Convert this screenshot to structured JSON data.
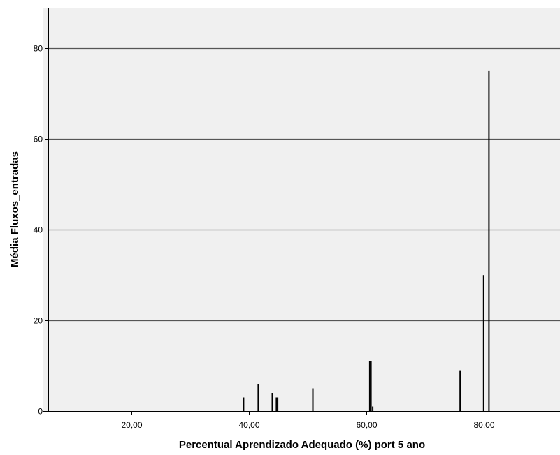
{
  "chart_data": {
    "type": "bar",
    "title": "",
    "xlabel": "Percentual Aprendizado Adequado (%) port 5 ano",
    "ylabel": "Média Fluxos_entradas",
    "xlim": [
      5,
      93
    ],
    "ylim": [
      0,
      89
    ],
    "xticks": [
      {
        "value": 20,
        "label": "20,00"
      },
      {
        "value": 40,
        "label": "40,00"
      },
      {
        "value": 60,
        "label": "60,00"
      },
      {
        "value": 80,
        "label": "80,00"
      }
    ],
    "yticks": [
      {
        "value": 0,
        "label": "0"
      },
      {
        "value": 20,
        "label": "20"
      },
      {
        "value": 40,
        "label": "40"
      },
      {
        "value": 60,
        "label": "60"
      },
      {
        "value": 80,
        "label": "80"
      }
    ],
    "grid": "horizontal",
    "x": [
      39.1,
      41.6,
      44.0,
      44.7,
      44.9,
      50.9,
      60.6,
      60.8,
      61.1,
      76.0,
      80.0,
      80.9
    ],
    "values": [
      3,
      6,
      4,
      3,
      3,
      5,
      11,
      11,
      1,
      9,
      30,
      75
    ],
    "colors": {
      "plot_bg": "#f0f0f0",
      "bar": "#000000",
      "grid": "#555555"
    }
  }
}
